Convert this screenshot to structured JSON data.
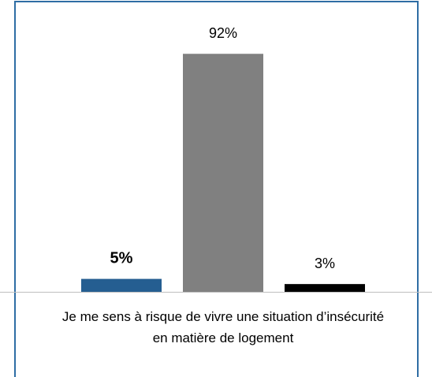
{
  "chart_data": {
    "type": "bar",
    "categories": [
      "Je me sens à risque de vivre une situation d’insécurité en matière de logement"
    ],
    "series": [
      {
        "color": "#255e91",
        "values": [
          5
        ],
        "value_labels": [
          "5%"
        ]
      },
      {
        "color": "#808080",
        "values": [
          92
        ],
        "value_labels": [
          "92%"
        ]
      },
      {
        "color": "#000000",
        "values": [
          3
        ],
        "value_labels": [
          "3%"
        ]
      }
    ]
  }
}
